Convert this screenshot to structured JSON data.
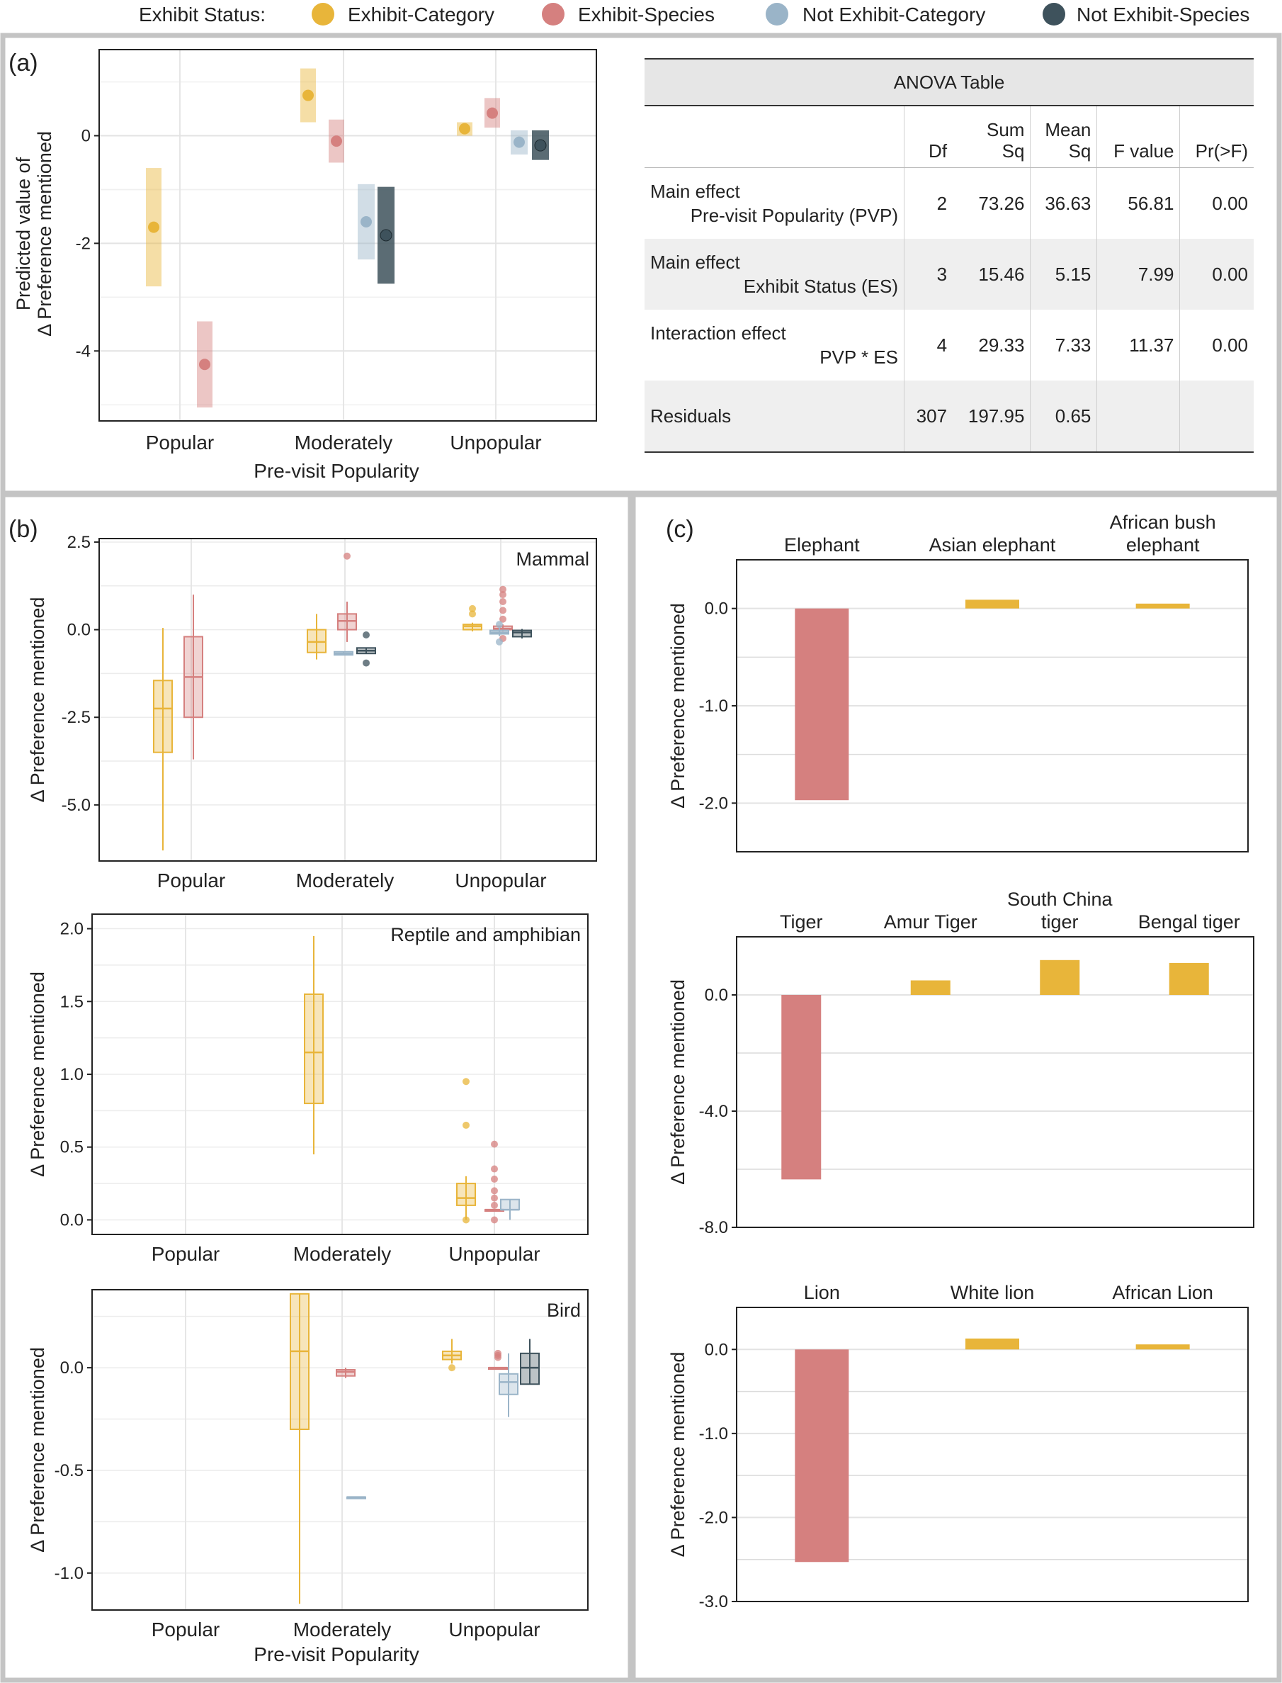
{
  "legend": {
    "title": "Exhibit Status:",
    "items": [
      {
        "label": "Exhibit-Category",
        "color": "#e8b53a"
      },
      {
        "label": "Exhibit-Species",
        "color": "#d5807f"
      },
      {
        "label": "Not Exhibit-Category",
        "color": "#9ab4c8"
      },
      {
        "label": "Not Exhibit-Species",
        "color": "#3e525c"
      }
    ]
  },
  "panel_labels": {
    "a": "(a)",
    "b": "(b)",
    "c": "(c)"
  },
  "chart_data": [
    {
      "id": "a",
      "type": "scatter",
      "ylabel_line1": "Predicted value of",
      "ylabel_line2": "Δ Preference mentioned",
      "xlabel": "Pre-visit Popularity",
      "categories": [
        "Popular",
        "Moderately",
        "Unpopular"
      ],
      "ylim": [
        -5.3,
        1.6
      ],
      "yticks": [
        {
          "value": 0,
          "label": "0"
        },
        {
          "value": -2,
          "label": "-2"
        },
        {
          "value": -4,
          "label": "-4"
        }
      ],
      "series": [
        {
          "status": 0,
          "points": [
            {
              "cat": 0,
              "y": -1.7,
              "lo": -2.8,
              "hi": -0.6
            },
            {
              "cat": 1,
              "y": 0.75,
              "lo": 0.25,
              "hi": 1.25
            },
            {
              "cat": 2,
              "y": 0.13,
              "lo": 0.0,
              "hi": 0.25
            }
          ]
        },
        {
          "status": 1,
          "points": [
            {
              "cat": 0,
              "y": -4.25,
              "lo": -5.05,
              "hi": -3.45
            },
            {
              "cat": 1,
              "y": -0.1,
              "lo": -0.5,
              "hi": 0.3
            },
            {
              "cat": 2,
              "y": 0.42,
              "lo": 0.15,
              "hi": 0.7
            }
          ]
        },
        {
          "status": 2,
          "points": [
            {
              "cat": 1,
              "y": -1.6,
              "lo": -2.3,
              "hi": -0.9
            },
            {
              "cat": 2,
              "y": -0.12,
              "lo": -0.35,
              "hi": 0.1
            }
          ]
        },
        {
          "status": 3,
          "points": [
            {
              "cat": 1,
              "y": -1.85,
              "lo": -2.75,
              "hi": -0.95
            },
            {
              "cat": 2,
              "y": -0.18,
              "lo": -0.45,
              "hi": 0.1
            }
          ]
        }
      ]
    },
    {
      "id": "b1",
      "type": "box",
      "title": "Mammal",
      "ylabel": "Δ Preference mentioned",
      "categories": [
        "Popular",
        "Moderately",
        "Unpopular"
      ],
      "ylim": [
        -6.6,
        2.6
      ],
      "yticks": [
        {
          "value": 2.5,
          "label": "2.5"
        },
        {
          "value": 0,
          "label": "0.0"
        },
        {
          "value": -2.5,
          "label": "-2.5"
        },
        {
          "value": -5,
          "label": "-5.0"
        }
      ],
      "boxes": [
        {
          "cat": 0,
          "status": 0,
          "q1": -3.5,
          "median": -2.25,
          "q3": -1.45,
          "lo": -6.3,
          "hi": 0.05,
          "outliers": []
        },
        {
          "cat": 0,
          "status": 1,
          "q1": -2.5,
          "median": -1.35,
          "q3": -0.2,
          "lo": -3.7,
          "hi": 1.0,
          "outliers": []
        },
        {
          "cat": 1,
          "status": 0,
          "q1": -0.65,
          "median": -0.35,
          "q3": 0.0,
          "lo": -0.85,
          "hi": 0.45,
          "outliers": []
        },
        {
          "cat": 1,
          "status": 1,
          "q1": 0.0,
          "median": 0.25,
          "q3": 0.45,
          "lo": -0.35,
          "hi": 0.8,
          "outliers": [
            2.1
          ]
        },
        {
          "cat": 1,
          "status": 2,
          "q1": -0.72,
          "median": -0.68,
          "q3": -0.63,
          "lo": -0.72,
          "hi": -0.63,
          "outliers": []
        },
        {
          "cat": 1,
          "status": 3,
          "q1": -0.68,
          "median": -0.6,
          "q3": -0.52,
          "lo": -0.68,
          "hi": -0.52,
          "outliers": [
            -0.15,
            -0.95
          ]
        },
        {
          "cat": 2,
          "status": 0,
          "q1": 0.0,
          "median": 0.1,
          "q3": 0.15,
          "lo": -0.05,
          "hi": 0.2,
          "outliers": [
            0.45,
            0.6
          ]
        },
        {
          "cat": 2,
          "status": 1,
          "q1": 0.0,
          "median": 0.03,
          "q3": 0.1,
          "lo": -0.05,
          "hi": 0.15,
          "outliers": [
            0.3,
            0.55,
            0.8,
            1.0,
            1.15,
            -0.25
          ]
        },
        {
          "cat": 2,
          "status": 2,
          "q1": -0.12,
          "median": -0.08,
          "q3": -0.02,
          "lo": -0.18,
          "hi": 0.05,
          "outliers": [
            0.15,
            -0.35
          ]
        },
        {
          "cat": 2,
          "status": 3,
          "q1": -0.2,
          "median": -0.08,
          "q3": -0.02,
          "lo": -0.25,
          "hi": 0.02,
          "outliers": []
        }
      ]
    },
    {
      "id": "b2",
      "type": "box",
      "title": "Reptile and amphibian",
      "ylabel": "Δ Preference mentioned",
      "categories": [
        "Popular",
        "Moderately",
        "Unpopular"
      ],
      "ylim": [
        -0.1,
        2.1
      ],
      "yticks": [
        {
          "value": 2.0,
          "label": "2.0"
        },
        {
          "value": 1.5,
          "label": "1.5"
        },
        {
          "value": 1.0,
          "label": "1.0"
        },
        {
          "value": 0.5,
          "label": "0.5"
        },
        {
          "value": 0.0,
          "label": "0.0"
        }
      ],
      "boxes": [
        {
          "cat": 1,
          "status": 0,
          "q1": 0.8,
          "median": 1.15,
          "q3": 1.55,
          "lo": 0.45,
          "hi": 1.95,
          "outliers": []
        },
        {
          "cat": 2,
          "status": 0,
          "q1": 0.1,
          "median": 0.15,
          "q3": 0.25,
          "lo": 0.0,
          "hi": 0.3,
          "outliers": [
            0.95,
            0.65,
            0.0
          ]
        },
        {
          "cat": 2,
          "status": 1,
          "q1": 0.07,
          "median": 0.07,
          "q3": 0.07,
          "lo": 0.07,
          "hi": 0.07,
          "outliers": [
            0.52,
            0.35,
            0.28,
            0.2,
            0.15,
            0.1,
            0.0
          ]
        },
        {
          "cat": 2,
          "status": 2,
          "q1": 0.07,
          "median": 0.07,
          "q3": 0.14,
          "lo": 0.0,
          "hi": 0.14,
          "outliers": []
        }
      ]
    },
    {
      "id": "b3",
      "type": "box",
      "title": "Bird",
      "ylabel": "Δ Preference mentioned",
      "xlabel": "Pre-visit Popularity",
      "categories": [
        "Popular",
        "Moderately",
        "Unpopular"
      ],
      "ylim": [
        -1.18,
        0.38
      ],
      "yticks": [
        {
          "value": 0.0,
          "label": "0.0"
        },
        {
          "value": -0.5,
          "label": "-0.5"
        },
        {
          "value": -1.0,
          "label": "-1.0"
        }
      ],
      "boxes": [
        {
          "cat": 1,
          "status": 0,
          "q1": -0.3,
          "median": 0.08,
          "q3": 0.36,
          "lo": -1.15,
          "hi": 0.36,
          "outliers": []
        },
        {
          "cat": 1,
          "status": 1,
          "q1": -0.04,
          "median": -0.02,
          "q3": -0.01,
          "lo": -0.05,
          "hi": 0.0,
          "outliers": []
        },
        {
          "cat": 1,
          "status": 2,
          "q1": -0.63,
          "median": -0.63,
          "q3": -0.63,
          "lo": -0.63,
          "hi": -0.63,
          "outliers": []
        },
        {
          "cat": 2,
          "status": 0,
          "q1": 0.04,
          "median": 0.06,
          "q3": 0.08,
          "lo": 0.02,
          "hi": 0.14,
          "outliers": [
            0.0
          ]
        },
        {
          "cat": 2,
          "status": 1,
          "q1": 0.0,
          "median": 0.0,
          "q3": 0.0,
          "lo": 0.0,
          "hi": 0.0,
          "outliers": [
            0.07,
            0.06,
            0.05
          ]
        },
        {
          "cat": 2,
          "status": 2,
          "q1": -0.13,
          "median": -0.07,
          "q3": -0.03,
          "lo": -0.24,
          "hi": 0.07,
          "outliers": []
        },
        {
          "cat": 2,
          "status": 3,
          "q1": -0.08,
          "median": 0.0,
          "q3": 0.07,
          "lo": -0.08,
          "hi": 0.14,
          "outliers": []
        }
      ]
    },
    {
      "id": "c1",
      "type": "bar",
      "ylabel": "Δ Preference mentioned",
      "ylim": [
        -2.5,
        0.5
      ],
      "yticks": [
        {
          "value": 0.0,
          "label": "0.0"
        },
        {
          "value": -1.0,
          "label": "-1.0"
        },
        {
          "value": -2.0,
          "label": "-2.0"
        }
      ],
      "bars": [
        {
          "label_lines": [
            "Elephant"
          ],
          "value": -1.97,
          "status": 1
        },
        {
          "label_lines": [
            "Asian elephant"
          ],
          "value": 0.09,
          "status": 0
        },
        {
          "label_lines": [
            "African bush",
            "elephant"
          ],
          "value": 0.05,
          "status": 0
        }
      ]
    },
    {
      "id": "c2",
      "type": "bar",
      "ylabel": "Δ Preference mentioned",
      "ylim": [
        -8.0,
        2.0
      ],
      "yticks": [
        {
          "value": 0.0,
          "label": "0.0"
        },
        {
          "value": -4.0,
          "label": "-4.0"
        },
        {
          "value": -8.0,
          "label": "-8.0"
        }
      ],
      "bars": [
        {
          "label_lines": [
            "Tiger"
          ],
          "value": -6.35,
          "status": 1
        },
        {
          "label_lines": [
            "Amur Tiger"
          ],
          "value": 0.5,
          "status": 0
        },
        {
          "label_lines": [
            "South China",
            "tiger"
          ],
          "value": 1.2,
          "status": 0
        },
        {
          "label_lines": [
            "Bengal tiger"
          ],
          "value": 1.1,
          "status": 0
        }
      ]
    },
    {
      "id": "c3",
      "type": "bar",
      "ylabel": "Δ Preference mentioned",
      "ylim": [
        -3.0,
        0.5
      ],
      "yticks": [
        {
          "value": 0.0,
          "label": "0.0"
        },
        {
          "value": -1.0,
          "label": "-1.0"
        },
        {
          "value": -2.0,
          "label": "-2.0"
        },
        {
          "value": -3.0,
          "label": "-3.0"
        }
      ],
      "bars": [
        {
          "label_lines": [
            "Lion"
          ],
          "value": -2.53,
          "status": 1
        },
        {
          "label_lines": [
            "White lion"
          ],
          "value": 0.13,
          "status": 0
        },
        {
          "label_lines": [
            "African Lion"
          ],
          "value": 0.06,
          "status": 0
        }
      ]
    }
  ],
  "anova": {
    "caption": "ANOVA Table",
    "col_df": "Df",
    "col_sum_1": "Sum",
    "col_sum_2": "Sq",
    "col_mean_1": "Mean",
    "col_mean_2": "Sq",
    "col_f": "F value",
    "col_p": "Pr(>F)",
    "rows": [
      {
        "l1": "Main effect",
        "l2": "Pre-visit Popularity (PVP)",
        "df": "2",
        "sumsq": "73.26",
        "meansq": "36.63",
        "f": "56.81",
        "p": "0.00"
      },
      {
        "l1": "Main effect",
        "l2": "Exhibit Status (ES)",
        "df": "3",
        "sumsq": "15.46",
        "meansq": "5.15",
        "f": "7.99",
        "p": "0.00"
      },
      {
        "l1": "Interaction effect",
        "l2": "PVP * ES",
        "df": "4",
        "sumsq": "29.33",
        "meansq": "7.33",
        "f": "11.37",
        "p": "0.00"
      },
      {
        "l1": "Residuals",
        "l2": "",
        "df": "307",
        "sumsq": "197.95",
        "meansq": "0.65",
        "f": "",
        "p": ""
      }
    ]
  }
}
